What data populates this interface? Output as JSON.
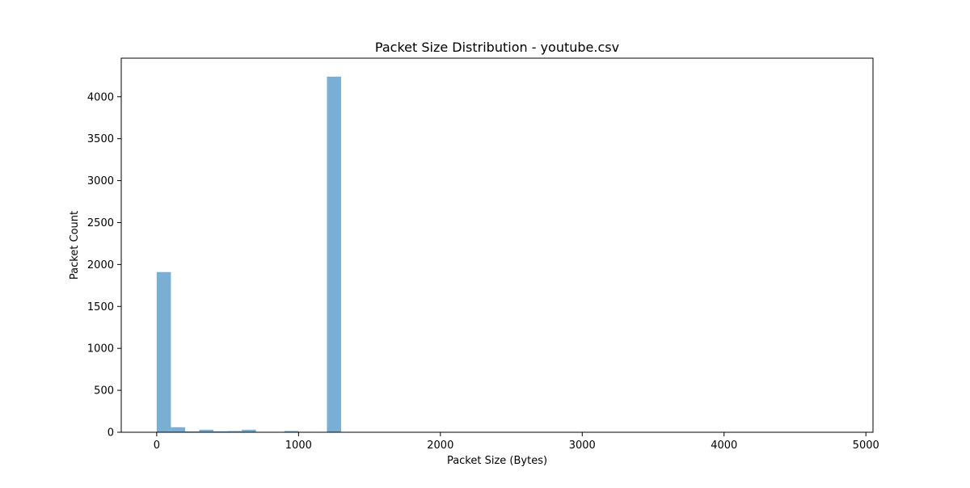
{
  "chart_data": {
    "type": "bar",
    "subtype": "histogram",
    "title": "Packet Size Distribution - youtube.csv",
    "xlabel": "Packet Size (Bytes)",
    "ylabel": "Packet Count",
    "xlim": [
      -250,
      5050
    ],
    "ylim": [
      0,
      4460
    ],
    "grid": false,
    "legend": "none",
    "bar_color": "#7aafd3",
    "bin_width": 100,
    "x_ticks": [
      0,
      1000,
      2000,
      3000,
      4000,
      5000
    ],
    "x_tick_labels": [
      "0",
      "1000",
      "2000",
      "3000",
      "4000",
      "5000"
    ],
    "y_ticks": [
      0,
      500,
      1000,
      1500,
      2000,
      2500,
      3000,
      3500,
      4000
    ],
    "y_tick_labels": [
      "0",
      "500",
      "1000",
      "1500",
      "2000",
      "2500",
      "3000",
      "3500",
      "4000"
    ],
    "bins": [
      {
        "start": 0,
        "end": 100,
        "count": 1910
      },
      {
        "start": 100,
        "end": 200,
        "count": 60
      },
      {
        "start": 200,
        "end": 300,
        "count": 10
      },
      {
        "start": 300,
        "end": 400,
        "count": 30
      },
      {
        "start": 400,
        "end": 500,
        "count": 12
      },
      {
        "start": 500,
        "end": 600,
        "count": 15
      },
      {
        "start": 600,
        "end": 700,
        "count": 30
      },
      {
        "start": 700,
        "end": 800,
        "count": 5
      },
      {
        "start": 800,
        "end": 900,
        "count": 5
      },
      {
        "start": 900,
        "end": 1000,
        "count": 15
      },
      {
        "start": 1000,
        "end": 1100,
        "count": 5
      },
      {
        "start": 1100,
        "end": 1200,
        "count": 3
      },
      {
        "start": 1200,
        "end": 1300,
        "count": 4240
      }
    ]
  }
}
